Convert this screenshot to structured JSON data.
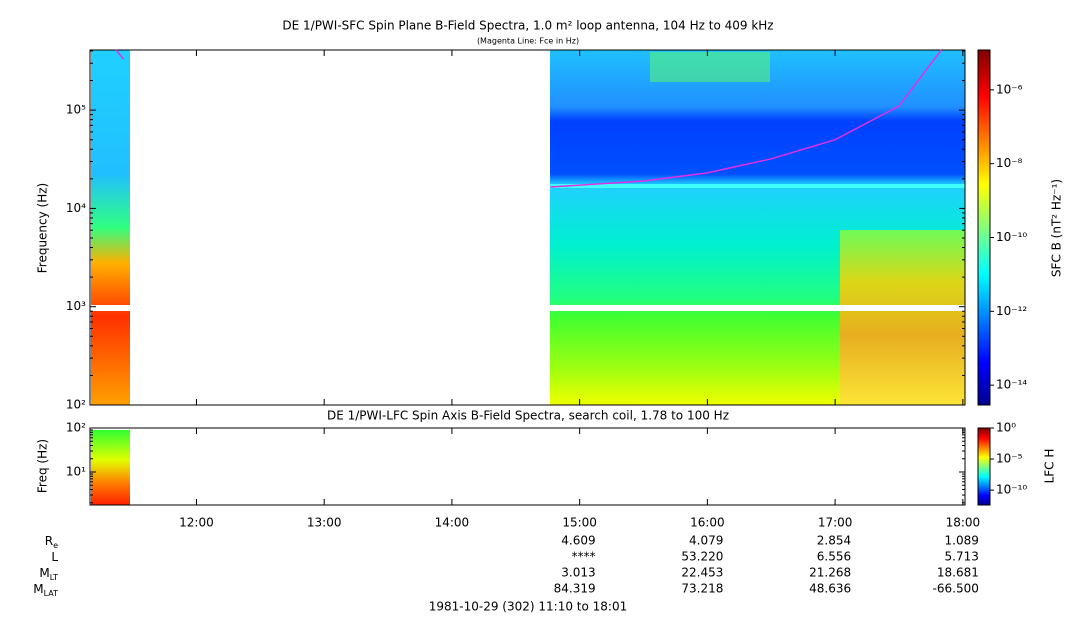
{
  "chart_data": [
    {
      "type": "spectrogram",
      "title": "DE 1/PWI-SFC  Spin Plane B-Field Spectra, 1.0 m² loop antenna, 104 Hz to 409 kHz",
      "subtitle": "(Magenta Line: Fce in Hz)",
      "ylabel": "Frequency (Hz)",
      "xlim": [
        11.1667,
        18.0167
      ],
      "ylim": [
        100,
        409000
      ],
      "log_y": true,
      "yticks": [
        {
          "value": 100,
          "label": "10²"
        },
        {
          "value": 1000,
          "label": "10³"
        },
        {
          "value": 10000,
          "label": "10⁴"
        },
        {
          "value": 100000,
          "label": "10⁵"
        }
      ],
      "colorbar": {
        "label": "SFC B (nT² Hz⁻¹)",
        "lim": [
          2.9e-15,
          1.2e-05
        ],
        "ticks": [
          {
            "value": 1e-06,
            "label": "10⁻⁶"
          },
          {
            "value": 1e-08,
            "label": "10⁻⁸"
          },
          {
            "value": 1e-10,
            "label": "10⁻¹⁰"
          },
          {
            "value": 1e-12,
            "label": "10⁻¹²"
          },
          {
            "value": 1e-14,
            "label": "10⁻¹⁴"
          }
        ]
      },
      "series": [
        {
          "color": "#e030e0",
          "x": [
            11.37,
            11.43,
            13,
            14.77,
            15.5,
            16,
            16.5,
            17,
            17.5,
            17.83
          ],
          "values": [
            409000,
            330000,
            null,
            16500,
            19000,
            23000,
            32000,
            50000,
            110000,
            409000
          ]
        }
      ]
    },
    {
      "type": "spectrogram",
      "title": "DE 1/PWI-LFC  Spin Axis B-Field Spectra, search coil, 1.78 to 100 Hz",
      "ylabel": "Freq (Hz)",
      "xlim": [
        11.1667,
        18.0167
      ],
      "xticks": [
        {
          "value": 12,
          "label": "12:00"
        },
        {
          "value": 13,
          "label": "13:00"
        },
        {
          "value": 14,
          "label": "14:00"
        },
        {
          "value": 15,
          "label": "15:00"
        },
        {
          "value": 16,
          "label": "16:00"
        },
        {
          "value": 17,
          "label": "17:00"
        },
        {
          "value": 18,
          "label": "18:00"
        }
      ],
      "ylim": [
        1.78,
        100
      ],
      "log_y": true,
      "yticks": [
        {
          "value": 10,
          "label": "10¹"
        },
        {
          "value": 100,
          "label": "10²"
        }
      ],
      "colorbar": {
        "label": "LFC H",
        "lim": [
          4e-13,
          1
        ],
        "ticks": [
          {
            "value": 1,
            "label": "10⁰"
          },
          {
            "value": 1e-05,
            "label": "10⁻⁵"
          },
          {
            "value": 1e-10,
            "label": "10⁻¹⁰"
          }
        ]
      }
    }
  ],
  "ephemeris": {
    "rows": [
      {
        "label": "R",
        "sub": "e",
        "values": [
          "4.609",
          "4.079",
          "2.854",
          "1.089"
        ]
      },
      {
        "label": "L",
        "values": [
          "****",
          "53.220",
          "6.556",
          "5.713"
        ]
      },
      {
        "label": "M",
        "sub": "LT",
        "values": [
          "3.013",
          "22.453",
          "21.268",
          "18.681"
        ]
      },
      {
        "label": "M",
        "sub": "LAT",
        "values": [
          "84.319",
          "73.218",
          "48.636",
          "-66.500"
        ]
      }
    ]
  },
  "footer": "1981-10-29 (302) 11:10 to 18:01"
}
